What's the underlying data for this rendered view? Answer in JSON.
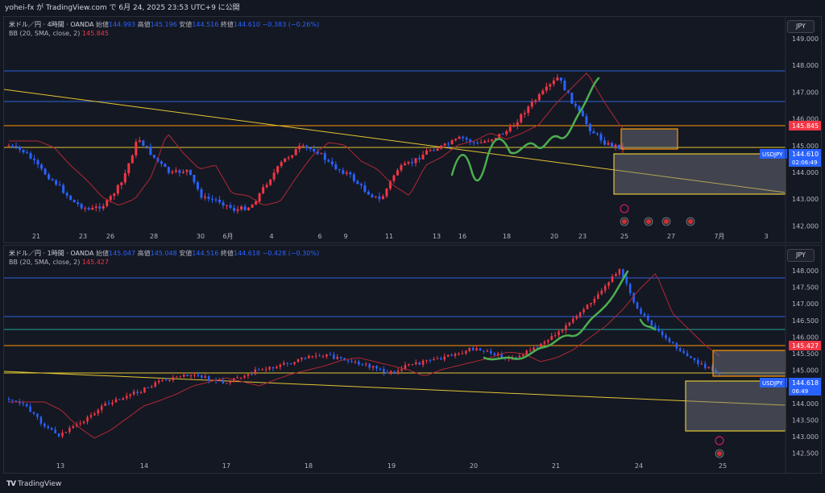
{
  "topbar": {
    "text": "yohei-fx が TradingView.com で 6月 24, 2025 23:53 UTC+9 に公開"
  },
  "colors": {
    "up": "#f23645",
    "down": "#2962ff",
    "bb": "#b22833",
    "wave": "#4caf50",
    "orange": "#ff9800",
    "yellow": "#e3c532",
    "blue_line": "#2f62d9",
    "teal": "#26a69a"
  },
  "panels": [
    {
      "id": "p1",
      "legend": {
        "symbol": "米ドル／円 · 4時間 · OANDA",
        "o_label": "始値",
        "o": "144.993",
        "h_label": "高値",
        "h": "145.196",
        "l_label": "安値",
        "l": "144.516",
        "c_label": "終値",
        "c": "144.610",
        "chg": "−0.383 (−0.26%)",
        "bb_label": "BB (20, SMA, close, 2)",
        "bb_value": "145.845"
      },
      "currency": "JPY",
      "y_ticks": [
        "149.000",
        "148.000",
        "147.000",
        "146.000",
        "145.000",
        "144.000",
        "143.000",
        "142.000"
      ],
      "x_ticks": [
        "21",
        "23",
        "26",
        "28",
        "30",
        "6月",
        "4",
        "6",
        "9",
        "11",
        "13",
        "16",
        "18",
        "20",
        "23",
        "25",
        "27",
        "7月",
        "3"
      ],
      "bb_label_price": "145.845",
      "price_tag": {
        "symbol": "USDJPY",
        "price": "144.610",
        "timer": "02:06:49"
      }
    },
    {
      "id": "p2",
      "legend": {
        "symbol": "米ドル／円 · 1時間 · OANDA",
        "o_label": "始値",
        "o": "145.047",
        "h_label": "高値",
        "h": "145.048",
        "l_label": "安値",
        "l": "144.516",
        "c_label": "終値",
        "c": "144.618",
        "chg": "−0.428 (−0.30%)",
        "bb_label": "BB (20, SMA, close, 2)",
        "bb_value": "145.427"
      },
      "currency": "JPY",
      "y_ticks": [
        "148.000",
        "147.500",
        "147.000",
        "146.500",
        "146.000",
        "145.500",
        "145.000",
        "144.500",
        "144.000",
        "143.500",
        "143.000",
        "142.500"
      ],
      "x_ticks": [
        "13",
        "14",
        "17",
        "18",
        "19",
        "20",
        "21",
        "24",
        "25"
      ],
      "bb_label_price": "145.427",
      "price_tag": {
        "symbol": "USDJPY",
        "price": "144.618",
        "timer": "06:49"
      }
    }
  ],
  "footer": {
    "brand": "TradingView"
  }
}
